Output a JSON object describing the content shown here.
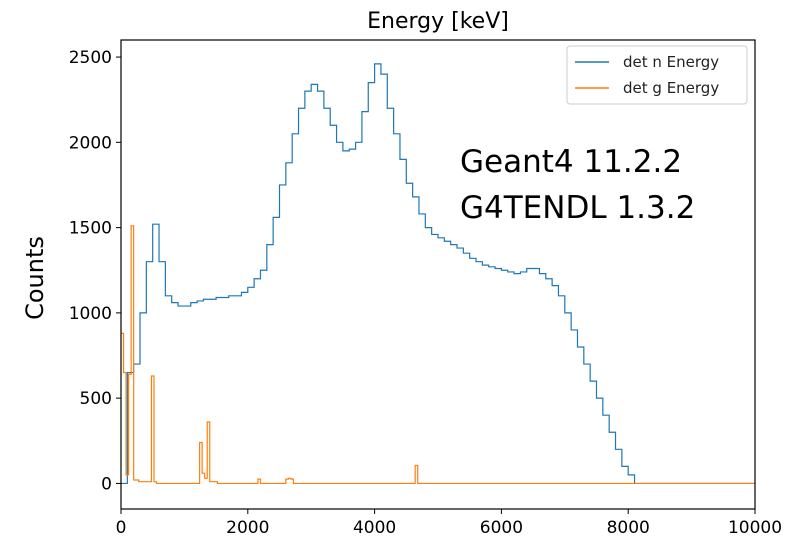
{
  "chart_data": {
    "type": "line",
    "title": "Energy [keV]",
    "xlabel": "",
    "ylabel": "Counts",
    "xlim": [
      0,
      10000
    ],
    "ylim": [
      -150,
      2600
    ],
    "x_ticks": [
      0,
      2000,
      4000,
      6000,
      8000,
      10000
    ],
    "y_ticks": [
      0,
      500,
      1000,
      1500,
      2000,
      2500
    ],
    "grid": false,
    "legend_position": "top-right",
    "annotations": [
      "Geant4 11.2.2",
      "G4TENDL 1.3.2"
    ],
    "series": [
      {
        "name": "det n Energy",
        "color": "#1f77b4",
        "x": [
          0,
          100,
          200,
          300,
          400,
          500,
          600,
          700,
          800,
          900,
          1000,
          1100,
          1200,
          1300,
          1400,
          1500,
          1600,
          1700,
          1800,
          1900,
          2000,
          2100,
          2200,
          2300,
          2400,
          2500,
          2600,
          2700,
          2800,
          2900,
          3000,
          3100,
          3200,
          3300,
          3400,
          3500,
          3600,
          3700,
          3800,
          3900,
          4000,
          4100,
          4200,
          4300,
          4400,
          4500,
          4600,
          4700,
          4800,
          4900,
          5000,
          5100,
          5200,
          5300,
          5400,
          5500,
          5600,
          5700,
          5800,
          5900,
          6000,
          6100,
          6200,
          6300,
          6400,
          6500,
          6600,
          6700,
          6800,
          6900,
          7000,
          7100,
          7200,
          7300,
          7400,
          7500,
          7600,
          7700,
          7800,
          7900,
          8000,
          8100,
          8200,
          8300,
          8400,
          8500,
          10000
        ],
        "y": [
          0,
          650,
          700,
          1000,
          1300,
          1520,
          1300,
          1100,
          1060,
          1040,
          1040,
          1060,
          1070,
          1080,
          1080,
          1090,
          1090,
          1100,
          1100,
          1120,
          1150,
          1200,
          1250,
          1400,
          1560,
          1750,
          1880,
          2050,
          2200,
          2300,
          2340,
          2300,
          2200,
          2100,
          2000,
          1950,
          1960,
          2000,
          2180,
          2350,
          2460,
          2400,
          2200,
          2050,
          1900,
          1760,
          1680,
          1580,
          1500,
          1460,
          1440,
          1420,
          1400,
          1380,
          1350,
          1320,
          1300,
          1280,
          1270,
          1260,
          1250,
          1240,
          1230,
          1240,
          1260,
          1260,
          1230,
          1200,
          1160,
          1100,
          1000,
          900,
          800,
          700,
          600,
          500,
          400,
          300,
          200,
          100,
          50,
          0,
          0,
          0,
          0,
          0,
          0
        ]
      },
      {
        "name": "det g Energy",
        "color": "#ff7f0e",
        "x": [
          0,
          40,
          80,
          120,
          160,
          200,
          240,
          280,
          320,
          360,
          400,
          440,
          480,
          520,
          560,
          600,
          800,
          1000,
          1200,
          1240,
          1280,
          1320,
          1360,
          1400,
          1440,
          1480,
          1520,
          1600,
          2000,
          2160,
          2200,
          2600,
          2640,
          2680,
          2720,
          3000,
          4000,
          4600,
          4640,
          4680,
          4720,
          4800,
          5000,
          10000
        ],
        "y": [
          880,
          650,
          50,
          640,
          1510,
          20,
          20,
          10,
          10,
          10,
          10,
          10,
          630,
          10,
          0,
          0,
          0,
          0,
          0,
          240,
          60,
          30,
          360,
          10,
          10,
          10,
          0,
          0,
          0,
          25,
          0,
          25,
          30,
          25,
          0,
          0,
          0,
          0,
          105,
          0,
          0,
          0,
          0,
          0
        ]
      }
    ]
  }
}
